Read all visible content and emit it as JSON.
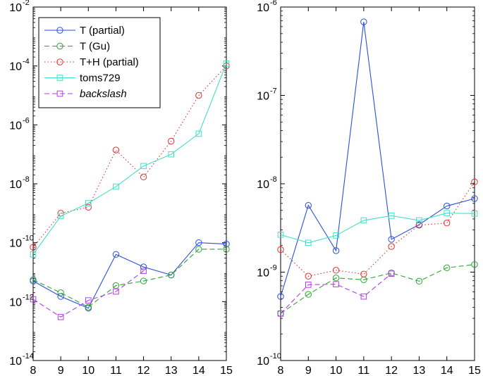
{
  "chart_data": [
    {
      "type": "line",
      "yscale": "log",
      "ylim_exp": [
        -14,
        -2
      ],
      "ytick_exps": [
        -14,
        -12,
        -10,
        -8,
        -6,
        -4,
        -2
      ],
      "ytick_base": "10",
      "ytick_labels": [
        "-14",
        "-12",
        "-10",
        "-8",
        "-6",
        "-4",
        "-2"
      ],
      "xlim": [
        8,
        15
      ],
      "x": [
        8,
        9,
        10,
        11,
        12,
        13,
        14,
        15
      ],
      "xtick_labels": [
        "8",
        "9",
        "10",
        "11",
        "12",
        "13",
        "14",
        "15"
      ],
      "legend": {
        "location": "top-left"
      },
      "series": [
        {
          "name": "T (partial)",
          "color": "#2b4ee0",
          "marker": "circle",
          "dash": "solid",
          "values": [
            5e-12,
            1.5e-12,
            6e-13,
            4e-11,
            1.5e-11,
            8e-12,
            1e-10,
            9e-11
          ]
        },
        {
          "name": "T (Gu)",
          "color": "#2fa52f",
          "marker": "circle",
          "dash": "dashed",
          "values": [
            5.5e-12,
            2e-12,
            6.5e-13,
            3.5e-12,
            5e-12,
            8e-12,
            6e-11,
            6e-11
          ]
        },
        {
          "name": "T+H (partial)",
          "color": "#e03030",
          "marker": "circle",
          "dash": "dotted",
          "values": [
            7e-11,
            1e-09,
            1.6e-09,
            1.4e-07,
            1.7e-08,
            2.8e-07,
            1e-05,
            0.0001
          ]
        },
        {
          "name": "toms729",
          "color": "#40e0c8",
          "marker": "square",
          "dash": "solid",
          "values": [
            4e-11,
            8e-10,
            2.2e-09,
            8e-09,
            4e-08,
            1e-07,
            5e-07,
            0.00012
          ]
        },
        {
          "name": "backslash",
          "color": "#b040e0",
          "marker": "square",
          "dash": "dashed",
          "values": [
            1.2e-12,
            3e-13,
            1.1e-12,
            2.2e-12,
            1.1e-11,
            null,
            null,
            null
          ]
        }
      ]
    },
    {
      "type": "line",
      "yscale": "log",
      "ylim_exp": [
        -10,
        -6
      ],
      "ytick_exps": [
        -10,
        -9,
        -8,
        -7,
        -6
      ],
      "ytick_base": "10",
      "ytick_labels": [
        "-10",
        "-9",
        "-8",
        "-7",
        "-6"
      ],
      "xlim": [
        8,
        15
      ],
      "x": [
        8,
        9,
        10,
        11,
        12,
        13,
        14,
        15
      ],
      "xtick_labels": [
        "8",
        "9",
        "10",
        "11",
        "12",
        "13",
        "14",
        "15"
      ],
      "series": [
        {
          "name": "T (partial)",
          "color": "#2b4ee0",
          "marker": "circle",
          "dash": "solid",
          "values": [
            5.3e-10,
            5.7e-09,
            1.75e-09,
            6.8e-07,
            2.35e-09,
            3.45e-09,
            5.6e-09,
            6.8e-09
          ]
        },
        {
          "name": "T (Gu)",
          "color": "#2fa52f",
          "marker": "circle",
          "dash": "dashed",
          "values": [
            3.4e-10,
            5.6e-10,
            8.6e-10,
            8.2e-10,
            9.8e-10,
            7.9e-10,
            1.12e-09,
            1.22e-09
          ]
        },
        {
          "name": "T+H (partial)",
          "color": "#e03030",
          "marker": "circle",
          "dash": "dotted",
          "values": [
            1.8e-09,
            9e-10,
            1.05e-09,
            9.5e-10,
            1.95e-09,
            3.4e-09,
            3.6e-09,
            1.05e-08
          ]
        },
        {
          "name": "toms729",
          "color": "#40e0c8",
          "marker": "square",
          "dash": "solid",
          "values": [
            2.65e-09,
            2.15e-09,
            2.6e-09,
            3.85e-09,
            4.35e-09,
            3.85e-09,
            4.65e-09,
            4.6e-09
          ]
        },
        {
          "name": "backslash",
          "color": "#b040e0",
          "marker": "square",
          "dash": "dashed",
          "values": [
            3.4e-10,
            7.2e-10,
            7.3e-10,
            5.3e-10,
            9.6e-10,
            null,
            null,
            null
          ]
        }
      ]
    }
  ]
}
